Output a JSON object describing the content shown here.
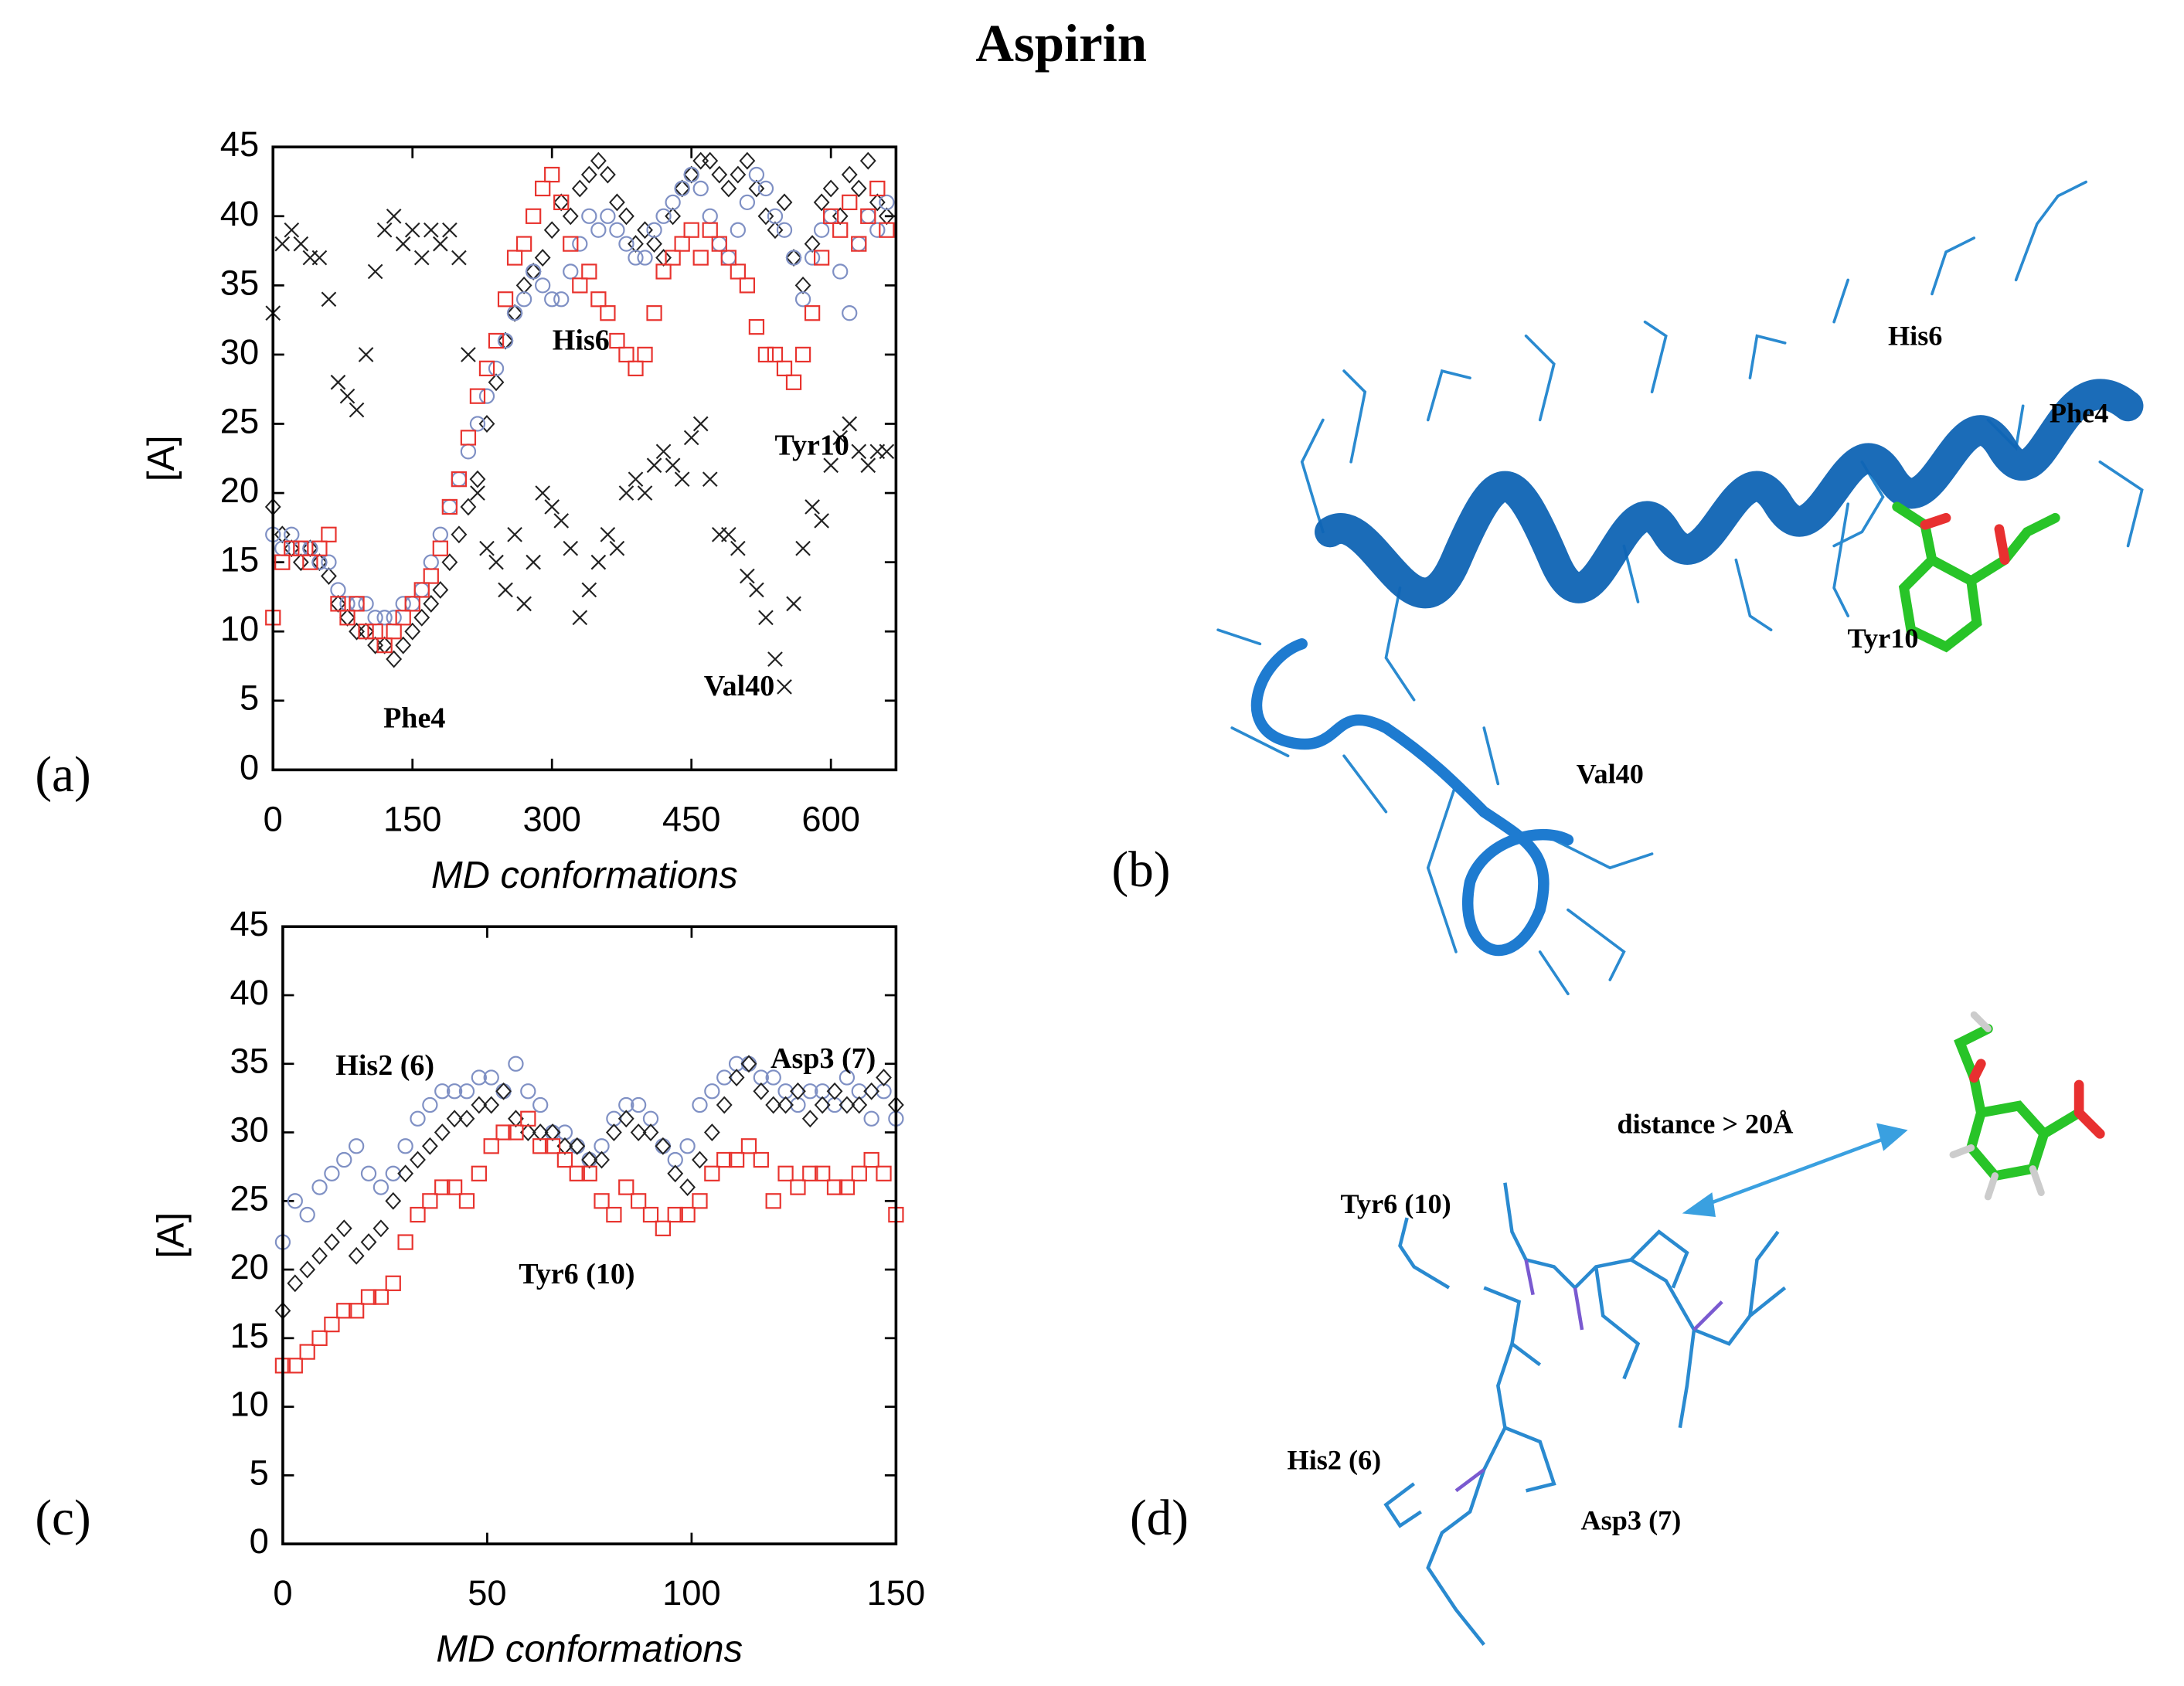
{
  "title": "Aspirin",
  "chart_data": [
    {
      "type": "scatter",
      "panel_label": "(a)",
      "y_label": "[A]",
      "x_label": "MD conformations",
      "xlim": [
        0,
        670
      ],
      "ylim": [
        0,
        45
      ],
      "xticks": [
        0,
        150,
        300,
        450,
        600
      ],
      "yticks": [
        0,
        5,
        10,
        15,
        20,
        25,
        30,
        35,
        40,
        45
      ],
      "annotations": [
        "Phe4",
        "His6",
        "Tyr10",
        "Val40"
      ],
      "x": [
        0,
        10,
        20,
        30,
        40,
        50,
        60,
        70,
        80,
        90,
        100,
        110,
        120,
        130,
        140,
        150,
        160,
        170,
        180,
        190,
        200,
        210,
        220,
        230,
        240,
        250,
        260,
        270,
        280,
        290,
        300,
        310,
        320,
        330,
        340,
        350,
        360,
        370,
        380,
        390,
        400,
        410,
        420,
        430,
        440,
        450,
        460,
        470,
        480,
        490,
        500,
        510,
        520,
        530,
        540,
        550,
        560,
        570,
        580,
        590,
        600,
        610,
        620,
        630,
        640,
        650,
        660
      ],
      "series": [
        {
          "marker": "x",
          "color": "#222222",
          "values": [
            33,
            38,
            39,
            38,
            37,
            37,
            34,
            28,
            27,
            26,
            30,
            36,
            39,
            40,
            38,
            39,
            37,
            39,
            38,
            39,
            37,
            30,
            20,
            16,
            15,
            13,
            17,
            12,
            15,
            20,
            19,
            18,
            16,
            11,
            13,
            15,
            17,
            16,
            20,
            21,
            20,
            22,
            23,
            22,
            21,
            24,
            25,
            21,
            17,
            17,
            16,
            14,
            13,
            11,
            8,
            6,
            12,
            16,
            19,
            18,
            22,
            24,
            25,
            23,
            22,
            23,
            23
          ]
        },
        {
          "marker": "diamond",
          "color": "#222222",
          "values": [
            19,
            17,
            16,
            15,
            16,
            15,
            14,
            12,
            11,
            10,
            10,
            9,
            9,
            8,
            9,
            10,
            11,
            12,
            13,
            15,
            17,
            19,
            21,
            25,
            28,
            31,
            33,
            35,
            36,
            37,
            39,
            41,
            40,
            42,
            43,
            44,
            43,
            41,
            40,
            38,
            39,
            38,
            37,
            40,
            42,
            43,
            44,
            44,
            43,
            42,
            43,
            44,
            42,
            40,
            39,
            41,
            37,
            35,
            38,
            41,
            42,
            40,
            43,
            42,
            44,
            41,
            40
          ]
        },
        {
          "marker": "circle",
          "color": "#7f90c4",
          "values": [
            17,
            16,
            17,
            16,
            16,
            15,
            15,
            13,
            12,
            12,
            12,
            11,
            11,
            11,
            12,
            12,
            13,
            15,
            17,
            19,
            21,
            23,
            25,
            27,
            29,
            31,
            33,
            34,
            36,
            35,
            34,
            34,
            36,
            38,
            40,
            39,
            40,
            39,
            38,
            37,
            37,
            39,
            40,
            41,
            42,
            43,
            42,
            40,
            38,
            37,
            39,
            41,
            43,
            42,
            40,
            39,
            37,
            34,
            37,
            39,
            40,
            36,
            33,
            38,
            40,
            39,
            41
          ]
        },
        {
          "marker": "square",
          "color": "#e8332e",
          "values": [
            11,
            15,
            16,
            16,
            15,
            16,
            17,
            12,
            11,
            12,
            10,
            10,
            9,
            10,
            11,
            12,
            13,
            14,
            16,
            19,
            21,
            24,
            27,
            29,
            31,
            34,
            37,
            38,
            40,
            42,
            43,
            41,
            38,
            35,
            36,
            34,
            33,
            31,
            30,
            29,
            30,
            33,
            36,
            37,
            38,
            39,
            37,
            39,
            38,
            37,
            36,
            35,
            32,
            30,
            30,
            29,
            28,
            30,
            33,
            37,
            40,
            39,
            41,
            38,
            40,
            42,
            39
          ]
        }
      ]
    },
    {
      "type": "scatter",
      "panel_label": "(c)",
      "y_label": "[A]",
      "x_label": "MD conformations",
      "xlim": [
        0,
        150
      ],
      "ylim": [
        0,
        45
      ],
      "xticks": [
        0,
        50,
        100,
        150
      ],
      "yticks": [
        0,
        5,
        10,
        15,
        20,
        25,
        30,
        35,
        40,
        45
      ],
      "annotations": [
        "His2 (6)",
        "Asp3 (7)",
        "Tyr6 (10)"
      ],
      "x": [
        0,
        3,
        6,
        9,
        12,
        15,
        18,
        21,
        24,
        27,
        30,
        33,
        36,
        39,
        42,
        45,
        48,
        51,
        54,
        57,
        60,
        63,
        66,
        69,
        72,
        75,
        78,
        81,
        84,
        87,
        90,
        93,
        96,
        99,
        102,
        105,
        108,
        111,
        114,
        117,
        120,
        123,
        126,
        129,
        132,
        135,
        138,
        141,
        144,
        147,
        150
      ],
      "series": [
        {
          "marker": "circle",
          "color": "#7f90c4",
          "values": [
            22,
            25,
            24,
            26,
            27,
            28,
            29,
            27,
            26,
            27,
            29,
            31,
            32,
            33,
            33,
            33,
            34,
            34,
            33,
            35,
            33,
            32,
            30,
            30,
            29,
            28,
            29,
            31,
            32,
            32,
            31,
            29,
            28,
            29,
            32,
            33,
            34,
            35,
            35,
            34,
            34,
            33,
            32,
            33,
            33,
            32,
            34,
            33,
            31,
            33,
            31
          ]
        },
        {
          "marker": "diamond",
          "color": "#222222",
          "values": [
            17,
            19,
            20,
            21,
            22,
            23,
            21,
            22,
            23,
            25,
            27,
            28,
            29,
            30,
            31,
            31,
            32,
            32,
            33,
            31,
            30,
            30,
            30,
            29,
            29,
            28,
            28,
            30,
            31,
            30,
            30,
            29,
            27,
            26,
            28,
            30,
            32,
            34,
            35,
            33,
            32,
            32,
            33,
            31,
            32,
            33,
            32,
            32,
            33,
            34,
            32
          ]
        },
        {
          "marker": "square",
          "color": "#e8332e",
          "values": [
            13,
            13,
            14,
            15,
            16,
            17,
            17,
            18,
            18,
            19,
            22,
            24,
            25,
            26,
            26,
            25,
            27,
            29,
            30,
            30,
            31,
            29,
            29,
            28,
            27,
            27,
            25,
            24,
            26,
            25,
            24,
            23,
            24,
            24,
            25,
            27,
            28,
            28,
            29,
            28,
            25,
            27,
            26,
            27,
            27,
            26,
            26,
            27,
            28,
            27,
            24
          ]
        }
      ]
    }
  ],
  "structures": [
    {
      "panel_label": "(b)",
      "labels": [
        "His6",
        "Phe4",
        "Tyr10",
        "Val40"
      ]
    },
    {
      "panel_label": "(d)",
      "labels": [
        "distance > 20Å",
        "Tyr6 (10)",
        "His2 (6)",
        "Asp3 (7)"
      ]
    }
  ]
}
